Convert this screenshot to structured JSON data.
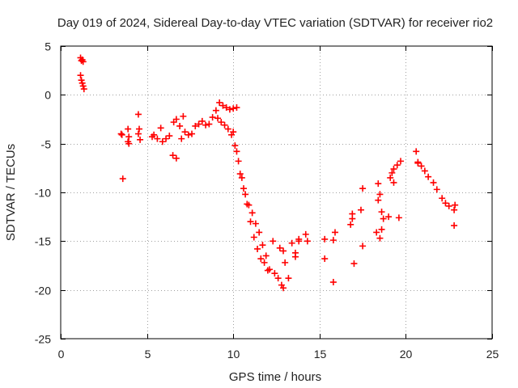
{
  "chart_data": {
    "type": "scatter",
    "title": "Day 019 of 2024, Sidereal Day-to-day VTEC variation (SDTVAR) for receiver rio2",
    "xlabel": "GPS time / hours",
    "ylabel": "SDTVAR / TECUs",
    "xlim": [
      0,
      25
    ],
    "ylim": [
      -25,
      5
    ],
    "xticks": [
      0,
      5,
      10,
      15,
      20,
      25
    ],
    "yticks": [
      5,
      0,
      -5,
      -10,
      -15,
      -20,
      -25
    ],
    "xtick_labels": [
      "0",
      "5",
      "10",
      "15",
      "20",
      "25"
    ],
    "ytick_labels": [
      "5",
      "0",
      "-5",
      "-10",
      "-15",
      "-20",
      "-25"
    ],
    "grid": true,
    "marker": "+",
    "series_color": "#ff0000",
    "series": [
      {
        "name": "SDTVAR",
        "x": [
          1.15,
          1.2,
          1.25,
          1.3,
          1.15,
          1.2,
          1.25,
          1.3,
          1.35,
          3.5,
          3.6,
          3.55,
          3.9,
          3.95,
          3.9,
          3.95,
          4.5,
          4.55,
          4.5,
          4.6,
          5.3,
          5.4,
          5.6,
          5.8,
          5.9,
          6.1,
          6.3,
          6.5,
          6.7,
          6.55,
          6.7,
          6.9,
          7.0,
          7.1,
          7.2,
          7.4,
          7.6,
          7.8,
          8.0,
          8.2,
          8.4,
          8.6,
          8.8,
          9.0,
          9.2,
          9.4,
          9.6,
          9.8,
          10.0,
          10.2,
          9.1,
          9.3,
          9.5,
          9.7,
          9.9,
          10.1,
          10.3,
          10.5,
          10.7,
          10.9,
          11.1,
          11.3,
          11.5,
          11.7,
          11.9,
          12.1,
          12.3,
          10.0,
          10.2,
          10.4,
          10.6,
          10.8,
          11.0,
          11.2,
          11.4,
          11.6,
          11.8,
          12.0,
          12.4,
          12.6,
          12.8,
          12.9,
          13.0,
          12.7,
          12.9,
          13.2,
          13.4,
          13.6,
          13.8,
          13.6,
          13.8,
          14.2,
          14.3,
          15.3,
          15.3,
          15.8,
          15.8,
          15.9,
          16.8,
          16.9,
          17.0,
          16.9,
          17.4,
          17.5,
          17.5,
          18.3,
          18.4,
          18.5,
          18.6,
          18.4,
          18.5,
          18.6,
          18.7,
          19.0,
          19.1,
          19.2,
          19.3,
          19.3,
          19.5,
          19.7,
          19.6,
          20.6,
          20.7,
          20.9,
          21.1,
          21.3,
          21.6,
          21.8,
          22.1,
          22.3,
          22.5,
          22.8,
          22.85,
          22.8,
          20.7
        ],
        "y": [
          3.8,
          3.5,
          3.6,
          3.4,
          2.0,
          1.5,
          1.2,
          0.9,
          0.6,
          -4.0,
          -8.6,
          -4.1,
          -3.5,
          -4.3,
          -4.8,
          -5.0,
          -2.0,
          -3.5,
          -4.0,
          -4.6,
          -4.3,
          -4.1,
          -4.5,
          -3.4,
          -4.8,
          -4.5,
          -4.2,
          -6.2,
          -6.5,
          -2.8,
          -2.5,
          -3.2,
          -4.5,
          -2.2,
          -3.8,
          -4.1,
          -4.0,
          -3.2,
          -3.0,
          -2.7,
          -3.1,
          -3.0,
          -2.3,
          -1.6,
          -0.8,
          -1.1,
          -1.3,
          -1.5,
          -1.4,
          -1.3,
          -2.4,
          -2.8,
          -3.1,
          -3.5,
          -4.1,
          -5.2,
          -6.8,
          -8.5,
          -10.2,
          -11.3,
          -12.1,
          -13.2,
          -14.1,
          -15.4,
          -16.5,
          -17.9,
          -15.0,
          -3.8,
          -5.8,
          -8.1,
          -9.6,
          -11.2,
          -13.0,
          -14.6,
          -15.8,
          -16.8,
          -17.2,
          -18.0,
          -18.3,
          -18.8,
          -19.5,
          -19.8,
          -17.2,
          -15.7,
          -16.0,
          -18.8,
          -15.2,
          -16.2,
          -15.0,
          -16.6,
          -14.8,
          -14.3,
          -15.0,
          -14.8,
          -16.8,
          -14.9,
          -19.2,
          -14.1,
          -13.3,
          -12.7,
          -17.3,
          -12.2,
          -11.8,
          -15.5,
          -9.6,
          -14.1,
          -10.8,
          -10.2,
          -12.0,
          -9.1,
          -14.7,
          -13.8,
          -12.7,
          -12.5,
          -8.5,
          -8.0,
          -9.0,
          -7.6,
          -7.2,
          -6.8,
          -12.6,
          -5.8,
          -6.9,
          -7.3,
          -7.8,
          -8.4,
          -9.0,
          -9.7,
          -10.6,
          -11.1,
          -11.4,
          -13.4,
          -11.3,
          -11.8,
          -7.0
        ]
      }
    ]
  }
}
